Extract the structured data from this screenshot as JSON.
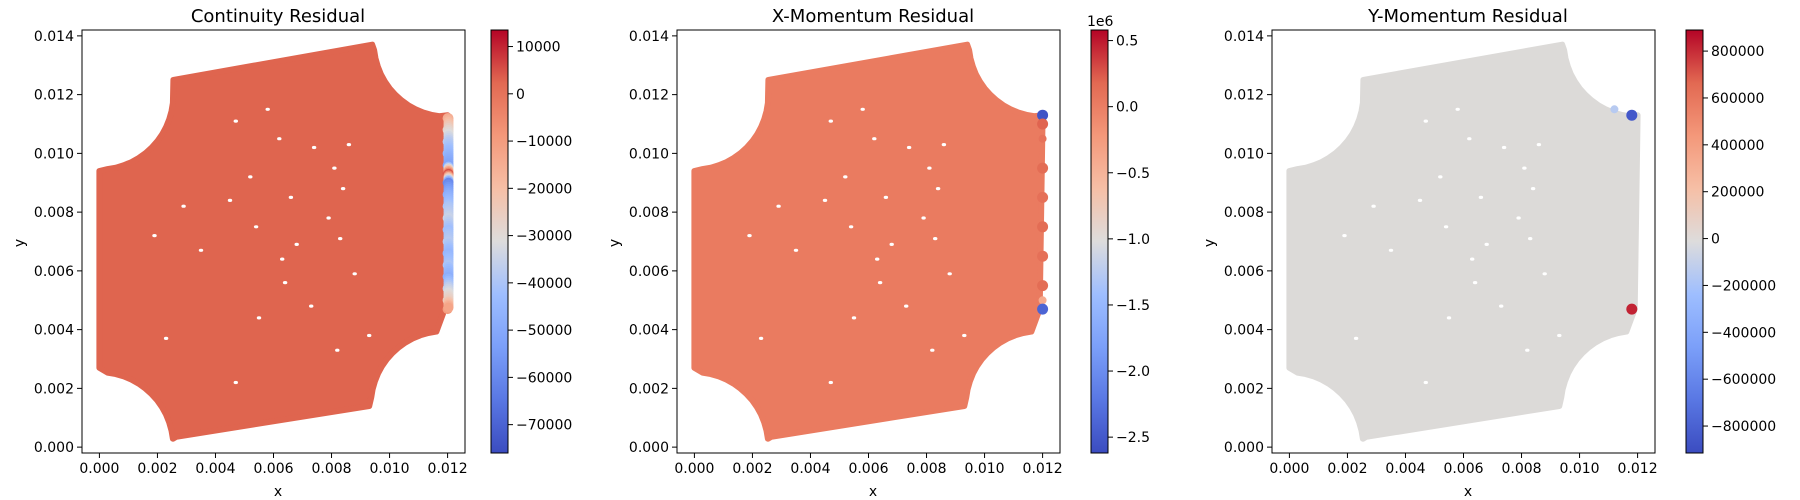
{
  "chart_data": [
    {
      "type": "scatter",
      "title": "Continuity Residual",
      "xlabel": "x",
      "ylabel": "y",
      "xlim": [
        -0.0006,
        0.0126
      ],
      "ylim": [
        -0.0002,
        0.0142
      ],
      "xticks": [
        0.0,
        0.002,
        0.004,
        0.006,
        0.008,
        0.01,
        0.012
      ],
      "xtick_labels": [
        "0.000",
        "0.002",
        "0.004",
        "0.006",
        "0.008",
        "0.010",
        "0.012"
      ],
      "yticks": [
        0.0,
        0.002,
        0.004,
        0.006,
        0.008,
        0.01,
        0.012,
        0.014
      ],
      "ytick_labels": [
        "0.000",
        "0.002",
        "0.004",
        "0.006",
        "0.008",
        "0.010",
        "0.012",
        "0.014"
      ],
      "colormap": "coolwarm",
      "domain_color": "#df654f",
      "colorbar": {
        "vmin": -76000,
        "vmax": 13500,
        "ticks": [
          10000,
          0,
          -10000,
          -20000,
          -30000,
          -40000,
          -50000,
          -60000,
          -70000
        ],
        "tick_labels": [
          "10000",
          "0",
          "−10000",
          "−20000",
          "−30000",
          "−40000",
          "−50000",
          "−60000",
          "−70000"
        ],
        "offset_label": ""
      },
      "boundary_values": [
        {
          "x": 0.012,
          "y": 0.0112,
          "value": -15000
        },
        {
          "x": 0.012,
          "y": 0.0108,
          "value": -28000
        },
        {
          "x": 0.012,
          "y": 0.0104,
          "value": -38000
        },
        {
          "x": 0.012,
          "y": 0.01,
          "value": -45000
        },
        {
          "x": 0.012,
          "y": 0.0096,
          "value": -52000
        },
        {
          "x": 0.012,
          "y": 0.0093,
          "value": 5000
        },
        {
          "x": 0.012,
          "y": 0.009,
          "value": -60000
        },
        {
          "x": 0.012,
          "y": 0.0086,
          "value": -48000
        },
        {
          "x": 0.012,
          "y": 0.0082,
          "value": -40000
        },
        {
          "x": 0.012,
          "y": 0.0078,
          "value": -35000
        },
        {
          "x": 0.012,
          "y": 0.0074,
          "value": -42000
        },
        {
          "x": 0.012,
          "y": 0.007,
          "value": -38000
        },
        {
          "x": 0.012,
          "y": 0.0066,
          "value": -45000
        },
        {
          "x": 0.012,
          "y": 0.0062,
          "value": -40000
        },
        {
          "x": 0.012,
          "y": 0.0058,
          "value": -48000
        },
        {
          "x": 0.012,
          "y": 0.0054,
          "value": -35000
        },
        {
          "x": 0.012,
          "y": 0.005,
          "value": -25000
        },
        {
          "x": 0.012,
          "y": 0.0047,
          "value": -10000
        }
      ]
    },
    {
      "type": "scatter",
      "title": "X-Momentum Residual",
      "xlabel": "x",
      "ylabel": "y",
      "xlim": [
        -0.0006,
        0.0126
      ],
      "ylim": [
        -0.0002,
        0.0142
      ],
      "xticks": [
        0.0,
        0.002,
        0.004,
        0.006,
        0.008,
        0.01,
        0.012
      ],
      "xtick_labels": [
        "0.000",
        "0.002",
        "0.004",
        "0.006",
        "0.008",
        "0.010",
        "0.012"
      ],
      "yticks": [
        0.0,
        0.002,
        0.004,
        0.006,
        0.008,
        0.01,
        0.012,
        0.014
      ],
      "ytick_labels": [
        "0.000",
        "0.002",
        "0.004",
        "0.006",
        "0.008",
        "0.010",
        "0.012",
        "0.014"
      ],
      "colormap": "coolwarm",
      "domain_color": "#ea7b60",
      "colorbar": {
        "vmin": -2.62,
        "vmax": 0.58,
        "ticks": [
          0.5,
          0.0,
          -0.5,
          -1.0,
          -1.5,
          -2.0,
          -2.5
        ],
        "tick_labels": [
          "0.5",
          "0.0",
          "−0.5",
          "−1.0",
          "−1.5",
          "−2.0",
          "−2.5"
        ],
        "offset_label": "1e6"
      },
      "boundary_values": [
        {
          "x": 0.012,
          "y": 0.0113,
          "value": -2.55
        },
        {
          "x": 0.012,
          "y": 0.011,
          "value": 0.2
        },
        {
          "x": 0.012,
          "y": 0.0105,
          "value": 0.1
        },
        {
          "x": 0.012,
          "y": 0.0095,
          "value": 0.15
        },
        {
          "x": 0.012,
          "y": 0.0085,
          "value": 0.12
        },
        {
          "x": 0.012,
          "y": 0.0075,
          "value": 0.15
        },
        {
          "x": 0.012,
          "y": 0.0065,
          "value": 0.12
        },
        {
          "x": 0.012,
          "y": 0.0055,
          "value": 0.15
        },
        {
          "x": 0.012,
          "y": 0.005,
          "value": -0.4
        },
        {
          "x": 0.012,
          "y": 0.0047,
          "value": -2.4
        }
      ]
    },
    {
      "type": "scatter",
      "title": "Y-Momentum Residual",
      "xlabel": "x",
      "ylabel": "y",
      "xlim": [
        -0.0006,
        0.0126
      ],
      "ylim": [
        -0.0002,
        0.0142
      ],
      "xticks": [
        0.0,
        0.002,
        0.004,
        0.006,
        0.008,
        0.01,
        0.012
      ],
      "xtick_labels": [
        "0.000",
        "0.002",
        "0.004",
        "0.006",
        "0.008",
        "0.010",
        "0.012"
      ],
      "yticks": [
        0.0,
        0.002,
        0.004,
        0.006,
        0.008,
        0.01,
        0.012,
        0.014
      ],
      "ytick_labels": [
        "0.000",
        "0.002",
        "0.004",
        "0.006",
        "0.008",
        "0.010",
        "0.012",
        "0.014"
      ],
      "colormap": "coolwarm",
      "domain_color": "#dcdad8",
      "colorbar": {
        "vmin": -915000,
        "vmax": 890000,
        "ticks": [
          800000,
          600000,
          400000,
          200000,
          0,
          -200000,
          -400000,
          -600000,
          -800000
        ],
        "tick_labels": [
          "800000",
          "600000",
          "400000",
          "200000",
          "0",
          "−200000",
          "−400000",
          "−600000",
          "−800000"
        ],
        "offset_label": ""
      },
      "boundary_values": [
        {
          "x": 0.0118,
          "y": 0.0113,
          "value": -850000
        },
        {
          "x": 0.0112,
          "y": 0.0115,
          "value": -150000
        },
        {
          "x": 0.0118,
          "y": 0.0047,
          "value": 820000
        }
      ]
    }
  ]
}
